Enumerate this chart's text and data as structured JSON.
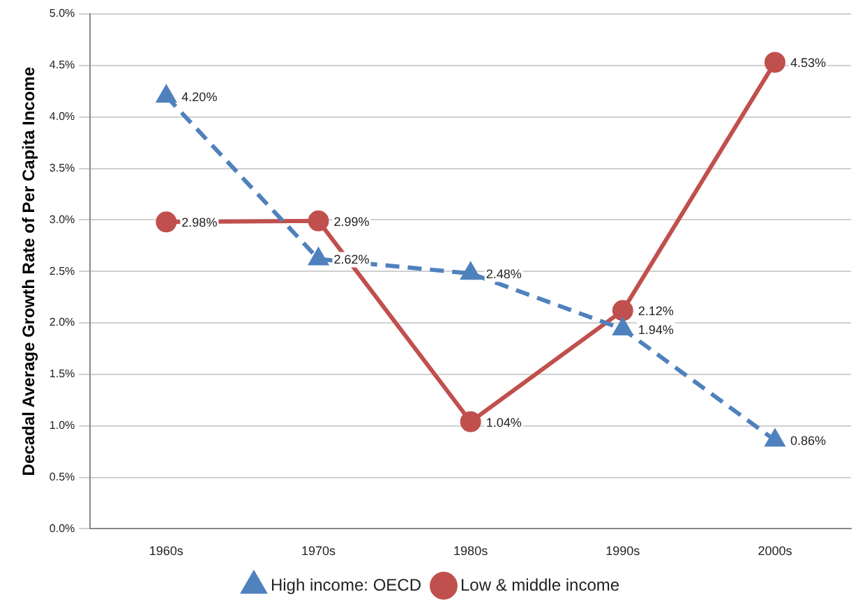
{
  "chart_data": {
    "type": "line",
    "ylabel": "Decadal Average Growth Rate of Per Capita Income",
    "categories": [
      "1960s",
      "1970s",
      "1980s",
      "1990s",
      "2000s"
    ],
    "series": [
      {
        "name": "High income: OECD",
        "color": "#4f81bd",
        "marker": "triangle",
        "line_style": "dashed",
        "values": [
          4.2,
          2.62,
          2.48,
          1.94,
          0.86
        ],
        "value_labels": [
          "4.20%",
          "2.62%",
          "2.48%",
          "1.94%",
          "0.86%"
        ]
      },
      {
        "name": "Low & middle income",
        "color": "#c0504d",
        "marker": "circle",
        "line_style": "solid",
        "values": [
          2.98,
          2.99,
          1.04,
          2.12,
          4.53
        ],
        "value_labels": [
          "2.98%",
          "2.99%",
          "1.04%",
          "2.12%",
          "4.53%"
        ]
      }
    ],
    "ylim": [
      0,
      5
    ],
    "yticks": [
      {
        "value": 0,
        "label": "0.0%"
      },
      {
        "value": 0.5,
        "label": "0.5%"
      },
      {
        "value": 1,
        "label": "1.0%"
      },
      {
        "value": 1.5,
        "label": "1.5%"
      },
      {
        "value": 2,
        "label": "2.0%"
      },
      {
        "value": 2.5,
        "label": "2.5%"
      },
      {
        "value": 3,
        "label": "3.0%"
      },
      {
        "value": 3.5,
        "label": "3.5%"
      },
      {
        "value": 4,
        "label": "4.0%"
      },
      {
        "value": 4.5,
        "label": "4.5%"
      },
      {
        "value": 5,
        "label": "5.0%"
      }
    ],
    "grid": "y",
    "legend": "bottom"
  }
}
